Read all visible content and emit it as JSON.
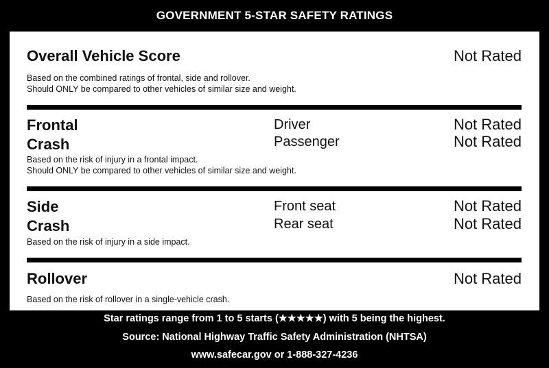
{
  "header": {
    "title": "GOVERNMENT 5-STAR SAFETY RATINGS"
  },
  "overall": {
    "title": "Overall Vehicle Score",
    "rating": "Not Rated",
    "desc_line1": "Based on the combined ratings of frontal, side and rollover.",
    "desc_line2": "Should ONLY be compared to other vehicles of similar size and weight."
  },
  "frontal": {
    "title_line1": "Frontal",
    "title_line2": "Crash",
    "seats": [
      {
        "label": "Driver",
        "rating": "Not Rated"
      },
      {
        "label": "Passenger",
        "rating": "Not Rated"
      }
    ],
    "desc_line1": "Based on the risk of injury in a frontal impact.",
    "desc_line2": "Should ONLY be compared to other vehicles of similar size and weight."
  },
  "side": {
    "title_line1": "Side",
    "title_line2": "Crash",
    "seats": [
      {
        "label": "Front seat",
        "rating": "Not Rated"
      },
      {
        "label": "Rear seat",
        "rating": "Not Rated"
      }
    ],
    "desc": "Based on the risk of injury in a side impact."
  },
  "rollover": {
    "title": "Rollover",
    "rating": "Not Rated",
    "desc": "Based on the risk of rollover in a single-vehicle crash."
  },
  "footer": {
    "line1": "Star ratings range from 1 to 5 starts (★★★★★) with 5 being the highest.",
    "line2": "Source: National Highway Traffic Safety Administration (NHTSA)",
    "line3": "www.safecar.gov or 1-888-327-4236"
  }
}
